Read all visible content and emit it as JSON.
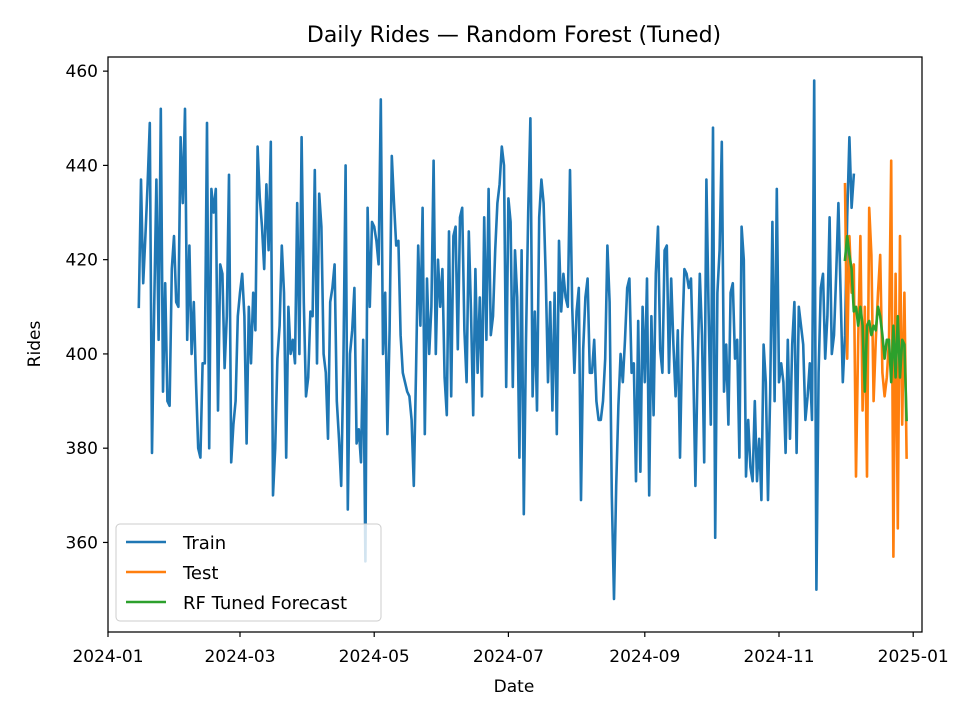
{
  "chart_data": {
    "type": "line",
    "title": "Daily Rides — Random Forest (Tuned)",
    "xlabel": "Date",
    "ylabel": "Rides",
    "xlim": [
      "2024-01-01",
      "2025-01-05"
    ],
    "ylim": [
      341,
      463
    ],
    "x_ticks": [
      "2024-01-01",
      "2024-03-01",
      "2024-05-01",
      "2024-07-01",
      "2024-09-01",
      "2024-11-01",
      "2025-01-01"
    ],
    "x_tick_labels": [
      "2024-01",
      "2024-03",
      "2024-05",
      "2024-07",
      "2024-09",
      "2024-11",
      "2025-01"
    ],
    "y_ticks": [
      360,
      380,
      400,
      420,
      440,
      460
    ],
    "y_tick_labels": [
      "360",
      "380",
      "400",
      "420",
      "440",
      "460"
    ],
    "grid": false,
    "legend": "lower-left",
    "series": [
      {
        "name": "Train",
        "color": "#1f77b4",
        "start": "2024-01-15",
        "values": [
          410,
          437,
          415,
          425,
          436,
          449,
          379,
          410,
          437,
          403,
          452,
          392,
          415,
          390,
          389,
          418,
          425,
          411,
          410,
          446,
          432,
          452,
          403,
          423,
          400,
          411,
          394,
          380,
          378,
          398,
          398,
          449,
          380,
          435,
          430,
          435,
          388,
          419,
          417,
          397,
          408,
          438,
          377,
          385,
          390,
          408,
          413,
          417,
          408,
          381,
          410,
          398,
          413,
          405,
          444,
          433,
          427,
          418,
          436,
          422,
          445,
          370,
          380,
          399,
          406,
          423,
          413,
          378,
          410,
          400,
          403,
          398,
          432,
          400,
          446,
          411,
          391,
          395,
          409,
          408,
          439,
          398,
          434,
          427,
          400,
          396,
          382,
          411,
          414,
          419,
          390,
          382,
          372,
          398,
          440,
          367,
          400,
          405,
          414,
          381,
          384,
          377,
          403,
          356,
          431,
          410,
          428,
          427,
          424,
          419,
          454,
          400,
          413,
          383,
          405,
          442,
          432,
          423,
          424,
          404,
          396,
          394,
          392,
          391,
          386,
          372,
          396,
          423,
          406,
          431,
          383,
          416,
          400,
          410,
          441,
          400,
          420,
          410,
          418,
          395,
          387,
          426,
          391,
          425,
          427,
          401,
          429,
          431,
          405,
          394,
          426,
          409,
          387,
          418,
          396,
          412,
          391,
          429,
          403,
          435,
          404,
          408,
          422,
          432,
          436,
          444,
          440,
          393,
          433,
          428,
          393,
          422,
          412,
          378,
          422,
          366,
          403,
          430,
          450,
          391,
          409,
          388,
          429,
          437,
          432,
          416,
          394,
          411,
          388,
          413,
          383,
          424,
          409,
          417,
          412,
          410,
          439,
          410,
          396,
          409,
          414,
          369,
          401,
          412,
          416,
          396,
          396,
          403,
          390,
          386,
          386,
          390,
          399,
          423,
          411,
          370,
          348,
          372,
          389,
          400,
          394,
          403,
          414,
          416,
          396,
          398,
          373,
          407,
          375,
          410,
          394,
          416,
          370,
          408,
          387,
          417,
          427,
          401,
          396,
          422,
          423,
          396,
          416,
          402,
          391,
          405,
          378,
          403,
          418,
          417,
          414,
          416,
          398,
          372,
          397,
          417,
          404,
          377,
          437,
          409,
          385,
          448,
          361,
          413,
          422,
          445,
          392,
          402,
          385,
          413,
          415,
          399,
          403,
          378,
          427,
          420,
          374,
          386,
          376,
          373,
          390,
          373,
          382,
          369,
          402,
          394,
          369,
          392,
          428,
          390,
          435,
          394,
          398,
          394,
          379,
          403,
          382,
          402,
          411,
          379,
          410,
          406,
          402,
          386,
          391,
          398,
          386,
          458,
          350,
          396,
          414,
          417,
          399,
          408,
          429,
          400,
          404,
          417,
          432,
          413,
          394,
          404,
          429,
          446,
          431,
          438
        ]
      },
      {
        "name": "Test",
        "color": "#ff7f0e",
        "start": "2024-12-01",
        "values": [
          436,
          399,
          425,
          413,
          419,
          374,
          403,
          425,
          388,
          410,
          374,
          431,
          421,
          390,
          403,
          413,
          421,
          396,
          391,
          395,
          403,
          441,
          357,
          417,
          363,
          425,
          385,
          413,
          378
        ]
      },
      {
        "name": "RF Tuned Forecast",
        "color": "#2ca02c",
        "start": "2024-12-01",
        "values": [
          420,
          425,
          421,
          418,
          409,
          410,
          406,
          410,
          406,
          392,
          406,
          407,
          404,
          406,
          405,
          410,
          408,
          404,
          399,
          403,
          403,
          394,
          406,
          395,
          408,
          395,
          403,
          402,
          386
        ]
      }
    ]
  }
}
